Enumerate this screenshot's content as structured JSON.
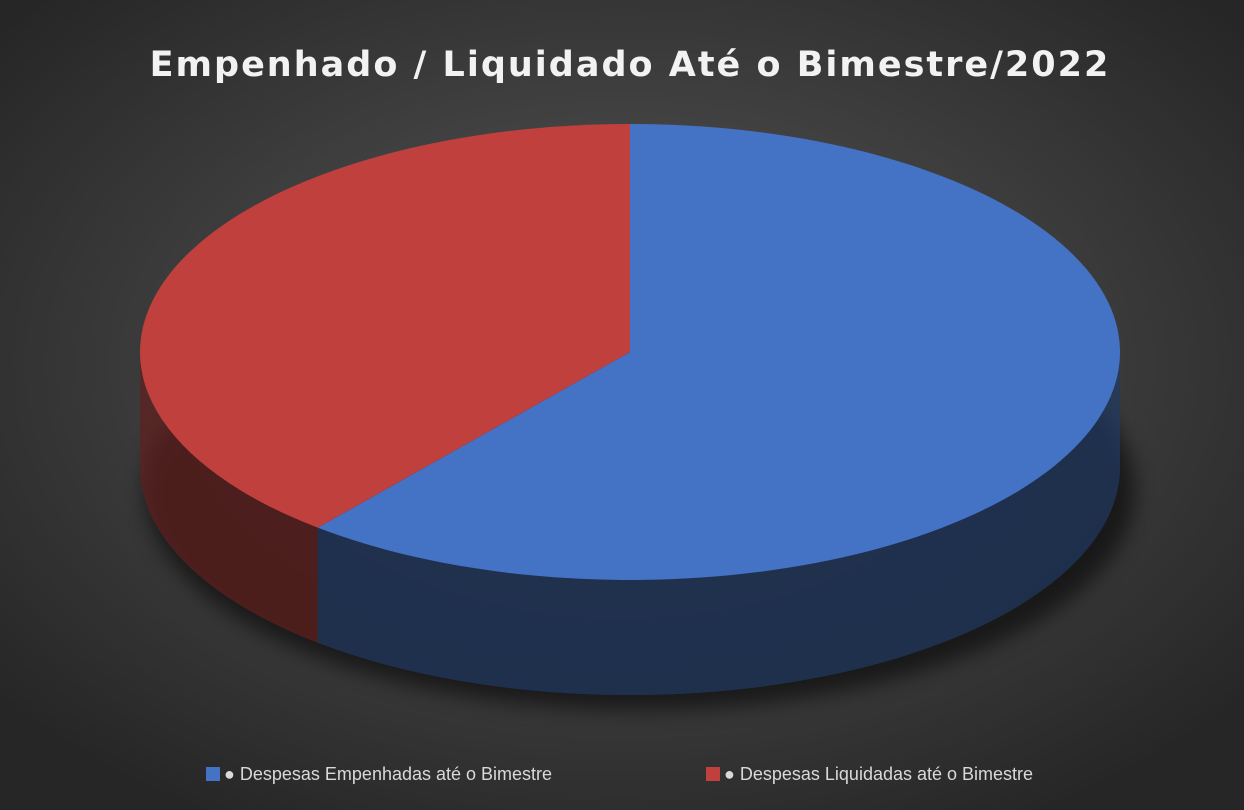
{
  "chart_data": {
    "type": "pie3d",
    "title": "Empenhado / Liquidado Até o Bimestre/2022",
    "categories": [
      "● Despesas Empenhadas até o Bimestre",
      "● Despesas Liquidadas até o Bimestre"
    ],
    "values": [
      61,
      39
    ],
    "colors": [
      "#4472c4",
      "#c0403d"
    ],
    "legend": "bottom"
  }
}
